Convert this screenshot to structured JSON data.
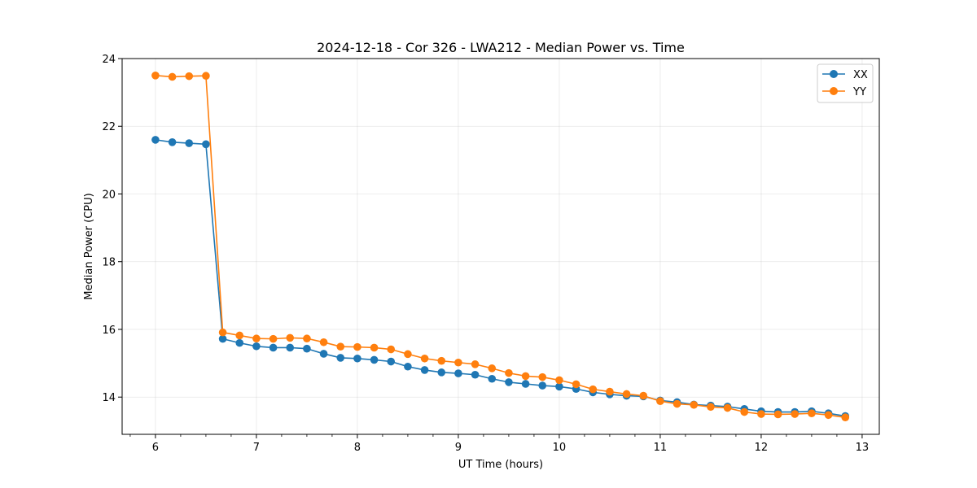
{
  "chart_data": {
    "type": "line",
    "title": "2024-12-18 - Cor 326 - LWA212 - Median Power vs. Time",
    "xlabel": "UT Time (hours)",
    "ylabel": "Median Power (CPU)",
    "xlim": [
      5.67,
      13.17
    ],
    "ylim": [
      12.9,
      24.0
    ],
    "xticks": [
      6,
      7,
      8,
      9,
      10,
      11,
      12,
      13
    ],
    "yticks": [
      14,
      16,
      18,
      20,
      22,
      24
    ],
    "x_minor_step": 0.25,
    "grid": true,
    "legend_position": "top-right",
    "x": [
      6.0,
      6.1667,
      6.3333,
      6.5,
      6.6667,
      6.8333,
      7.0,
      7.1667,
      7.3333,
      7.5,
      7.6667,
      7.8333,
      8.0,
      8.1667,
      8.3333,
      8.5,
      8.6667,
      8.8333,
      9.0,
      9.1667,
      9.3333,
      9.5,
      9.6667,
      9.8333,
      10.0,
      10.1667,
      10.3333,
      10.5,
      10.6667,
      10.8333,
      11.0,
      11.1667,
      11.3333,
      11.5,
      11.6667,
      11.8333,
      12.0,
      12.1667,
      12.3333,
      12.5,
      12.6667,
      12.8333
    ],
    "series": [
      {
        "name": "XX",
        "color": "#1f77b4",
        "values": [
          21.6,
          21.53,
          21.5,
          21.47,
          15.72,
          15.6,
          15.5,
          15.46,
          15.46,
          15.43,
          15.28,
          15.16,
          15.14,
          15.1,
          15.05,
          14.9,
          14.8,
          14.73,
          14.7,
          14.66,
          14.54,
          14.44,
          14.39,
          14.34,
          14.31,
          14.24,
          14.14,
          14.08,
          14.04,
          14.02,
          13.9,
          13.85,
          13.78,
          13.75,
          13.72,
          13.65,
          13.58,
          13.56,
          13.56,
          13.58,
          13.52,
          13.44
        ]
      },
      {
        "name": "YY",
        "color": "#ff7f0e",
        "values": [
          23.5,
          23.46,
          23.48,
          23.49,
          15.91,
          15.82,
          15.73,
          15.72,
          15.75,
          15.73,
          15.62,
          15.49,
          15.48,
          15.46,
          15.41,
          15.27,
          15.14,
          15.07,
          15.02,
          14.97,
          14.85,
          14.71,
          14.62,
          14.59,
          14.5,
          14.38,
          14.23,
          14.16,
          14.09,
          14.04,
          13.88,
          13.8,
          13.77,
          13.71,
          13.68,
          13.56,
          13.5,
          13.49,
          13.5,
          13.52,
          13.47,
          13.4
        ]
      }
    ]
  }
}
